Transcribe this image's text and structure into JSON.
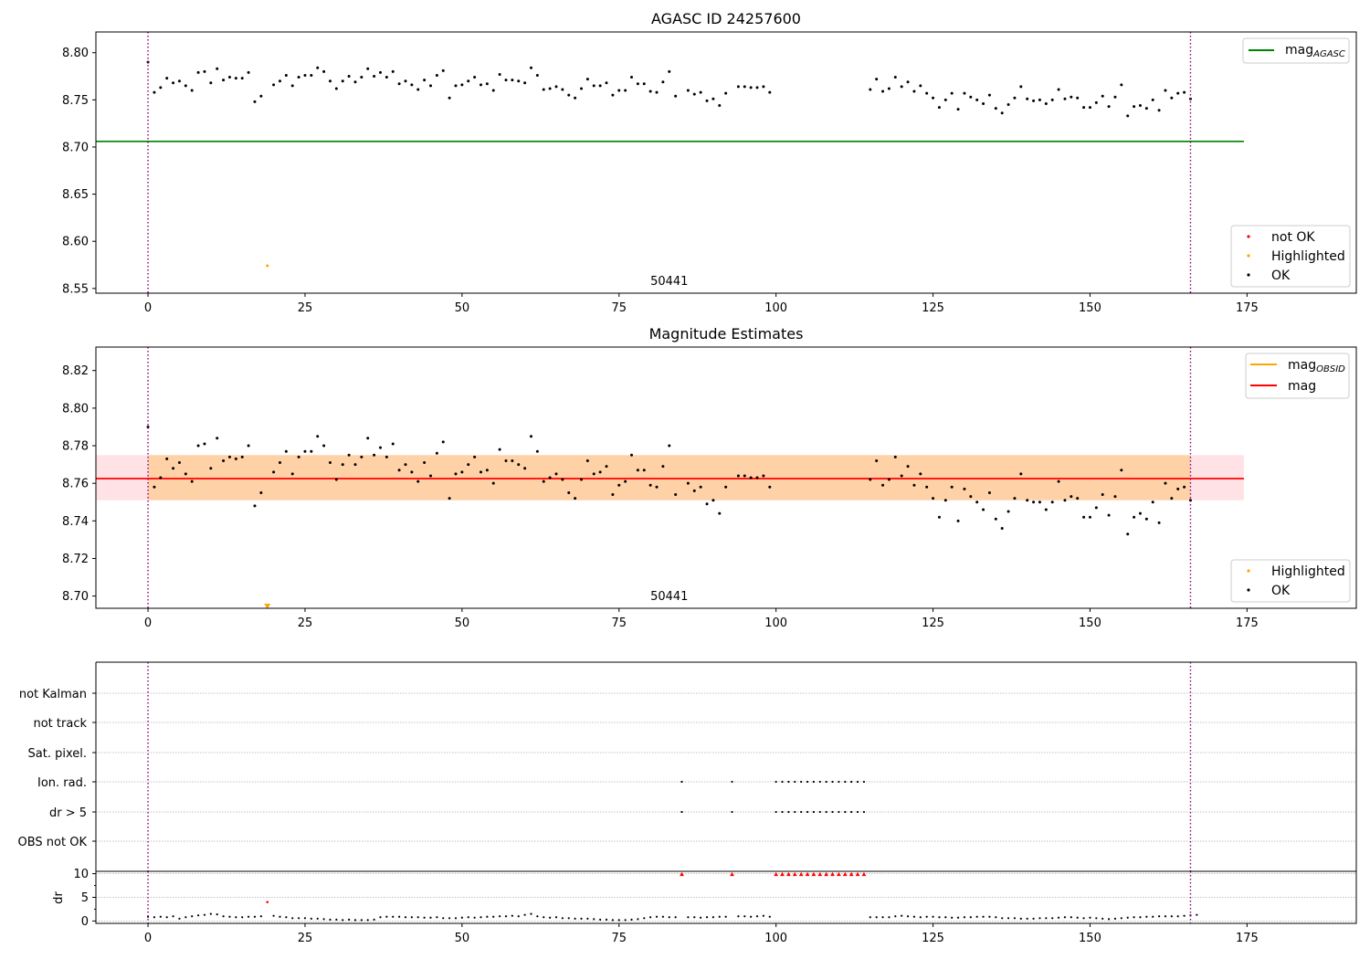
{
  "chart_data": [
    {
      "type": "scatter",
      "panel": "top",
      "title": "AGASC ID 24257600",
      "xlim": [
        -8.3,
        192.4
      ],
      "ylim": [
        8.545,
        8.822
      ],
      "xticks": [
        0,
        25,
        50,
        75,
        100,
        125,
        150,
        175
      ],
      "yticks": [
        8.55,
        8.6,
        8.65,
        8.7,
        8.75,
        8.8
      ],
      "ytick_labels": [
        "8.55",
        "8.60",
        "8.65",
        "8.70",
        "8.75",
        "8.80"
      ],
      "xtick_labels": [
        "0",
        "25",
        "50",
        "75",
        "100",
        "125",
        "150",
        "175"
      ],
      "obsid_label": "50441",
      "obsid_label_x": 83,
      "obsid_boundaries": [
        0,
        166
      ],
      "ref_line": {
        "name": "mag_AGASC",
        "value": 8.706,
        "xmax": 174.5,
        "color": "#008000"
      },
      "legend_lines": [
        {
          "label": "mag",
          "sub": "AGASC",
          "color": "#008000"
        }
      ],
      "legend_points": [
        {
          "label": "not OK",
          "color": "#ff0000"
        },
        {
          "label": "Highlighted",
          "color": "#ffa500"
        },
        {
          "label": "OK",
          "color": "#000000"
        }
      ],
      "highlighted": [
        {
          "x": 19,
          "y": 8.574
        }
      ],
      "ok_series": {
        "x_start": 0,
        "values": [
          8.79,
          8.758,
          8.763,
          8.773,
          8.768,
          8.77,
          8.765,
          8.76,
          8.779,
          8.78,
          8.768,
          8.783,
          8.771,
          8.774,
          8.773,
          8.773,
          8.779,
          8.748,
          8.754,
          null,
          8.766,
          8.77,
          8.776,
          8.765,
          8.774,
          8.776,
          8.776,
          8.784,
          8.78,
          8.77,
          8.762,
          8.77,
          8.775,
          8.769,
          8.774,
          8.783,
          8.775,
          8.779,
          8.774,
          8.78,
          8.767,
          8.77,
          8.766,
          8.761,
          8.771,
          8.765,
          8.776,
          8.781,
          8.752,
          8.765,
          8.766,
          8.77,
          8.774,
          8.766,
          8.767,
          8.76,
          8.777,
          8.771,
          8.771,
          8.77,
          8.768,
          8.784,
          8.776,
          8.761,
          8.762,
          8.764,
          8.761,
          8.755,
          8.752,
          8.762,
          8.772,
          8.765,
          8.765,
          8.768,
          8.755,
          8.76,
          8.76,
          8.774,
          8.767,
          8.767,
          8.759,
          8.758,
          8.769,
          8.78,
          8.754,
          null,
          8.76,
          8.756,
          8.758,
          8.749,
          8.751,
          8.744,
          8.757,
          null,
          8.764,
          8.764,
          8.763,
          8.763,
          8.764,
          8.758,
          null,
          null,
          null,
          null,
          null,
          null,
          null,
          null,
          null,
          null,
          null,
          null,
          null,
          null,
          null,
          8.761,
          8.772,
          8.759,
          8.762,
          8.774,
          8.764,
          8.769,
          8.759,
          8.765,
          8.757,
          8.752,
          8.742,
          8.75,
          8.757,
          8.74,
          8.757,
          8.753,
          8.75,
          8.746,
          8.755,
          8.741,
          8.736,
          8.745,
          8.752,
          8.764,
          8.751,
          8.749,
          8.75,
          8.746,
          8.75,
          8.761,
          8.751,
          8.753,
          8.752,
          8.742,
          8.742,
          8.747,
          8.754,
          8.743,
          8.753,
          8.766,
          8.733,
          8.743,
          8.744,
          8.741,
          8.75,
          8.739,
          8.76,
          8.752,
          8.757,
          8.758,
          8.751
        ]
      }
    },
    {
      "type": "scatter",
      "panel": "middle",
      "title": "Magnitude Estimates",
      "xlim": [
        -8.3,
        192.4
      ],
      "ylim": [
        8.6935,
        8.8325
      ],
      "xticks": [
        0,
        25,
        50,
        75,
        100,
        125,
        150,
        175
      ],
      "yticks": [
        8.7,
        8.72,
        8.74,
        8.76,
        8.78,
        8.8,
        8.82
      ],
      "ytick_labels": [
        "8.70",
        "8.72",
        "8.74",
        "8.76",
        "8.78",
        "8.80",
        "8.82"
      ],
      "xtick_labels": [
        "0",
        "25",
        "50",
        "75",
        "100",
        "125",
        "150",
        "175"
      ],
      "obsid_label": "50441",
      "obsid_label_x": 83,
      "obsid_boundaries": [
        0,
        166
      ],
      "mag_line": {
        "value": 8.7625,
        "xmax": 174.5,
        "color": "#ff0000"
      },
      "mag_band": {
        "low": 8.751,
        "high": 8.775,
        "color": "#ffb6c1"
      },
      "mag_obsid_band": {
        "low": 8.751,
        "high": 8.775,
        "xmax": 166,
        "color": "#ffa500"
      },
      "legend_lines": [
        {
          "label": "mag",
          "sub": "OBSID",
          "color": "#ffa500"
        },
        {
          "label": "mag",
          "sub": "",
          "color": "#ff0000"
        }
      ],
      "legend_points": [
        {
          "label": "Highlighted",
          "color": "#ffa500"
        },
        {
          "label": "OK",
          "color": "#000000"
        }
      ],
      "highlighted": [
        {
          "x": 19,
          "y": 8.6945,
          "marker": "triangle-down"
        }
      ],
      "ok_series": {
        "x_start": 0,
        "values": [
          8.79,
          8.758,
          8.763,
          8.773,
          8.768,
          8.771,
          8.765,
          8.761,
          8.78,
          8.781,
          8.768,
          8.784,
          8.772,
          8.774,
          8.773,
          8.774,
          8.78,
          8.748,
          8.755,
          null,
          8.766,
          8.771,
          8.777,
          8.765,
          8.774,
          8.777,
          8.777,
          8.785,
          8.78,
          8.771,
          8.762,
          8.77,
          8.775,
          8.77,
          8.774,
          8.784,
          8.775,
          8.779,
          8.774,
          8.781,
          8.767,
          8.77,
          8.766,
          8.761,
          8.771,
          8.764,
          8.776,
          8.782,
          8.752,
          8.765,
          8.766,
          8.77,
          8.774,
          8.766,
          8.767,
          8.76,
          8.778,
          8.772,
          8.772,
          8.77,
          8.768,
          8.785,
          8.777,
          8.761,
          8.763,
          8.765,
          8.762,
          8.755,
          8.752,
          8.762,
          8.772,
          8.765,
          8.766,
          8.769,
          8.754,
          8.759,
          8.761,
          8.775,
          8.767,
          8.767,
          8.759,
          8.758,
          8.769,
          8.78,
          8.754,
          null,
          8.76,
          8.756,
          8.758,
          8.749,
          8.751,
          8.744,
          8.758,
          null,
          8.764,
          8.764,
          8.763,
          8.763,
          8.764,
          8.758,
          null,
          null,
          null,
          null,
          null,
          null,
          null,
          null,
          null,
          null,
          null,
          null,
          null,
          null,
          null,
          8.762,
          8.772,
          8.759,
          8.762,
          8.774,
          8.764,
          8.769,
          8.759,
          8.765,
          8.758,
          8.752,
          8.742,
          8.751,
          8.758,
          8.74,
          8.757,
          8.753,
          8.75,
          8.746,
          8.755,
          8.741,
          8.736,
          8.745,
          8.752,
          8.765,
          8.751,
          8.75,
          8.75,
          8.746,
          8.75,
          8.761,
          8.751,
          8.753,
          8.752,
          8.742,
          8.742,
          8.747,
          8.754,
          8.743,
          8.753,
          8.767,
          8.733,
          8.742,
          8.744,
          8.741,
          8.75,
          8.739,
          8.76,
          8.752,
          8.757,
          8.758,
          8.751
        ]
      }
    },
    {
      "type": "scatter",
      "panel": "flags",
      "xlim": [
        -8.3,
        192.4
      ],
      "category_labels": [
        "not Kalman",
        "not track",
        "Sat. pixel.",
        "Ion. rad.",
        "dr > 5",
        "OBS not OK"
      ],
      "obsid_boundaries": [
        0,
        166
      ],
      "flag_points": {
        "Ion. rad.": [
          85,
          93,
          100,
          101,
          102,
          103,
          104,
          105,
          106,
          107,
          108,
          109,
          110,
          111,
          112,
          113,
          114
        ],
        "dr > 5": [
          85,
          93,
          100,
          101,
          102,
          103,
          104,
          105,
          106,
          107,
          108,
          109,
          110,
          111,
          112,
          113,
          114
        ]
      }
    },
    {
      "type": "scatter",
      "panel": "dr",
      "ylabel": "dr",
      "xlim": [
        -8.3,
        192.4
      ],
      "ylim": [
        -0.5,
        10.5
      ],
      "yticks": [
        0,
        5,
        10
      ],
      "ytick_labels": [
        "0",
        "5",
        "10"
      ],
      "xticks": [
        0,
        25,
        50,
        75,
        100,
        125,
        150,
        175
      ],
      "xtick_labels": [
        "0",
        "25",
        "50",
        "75",
        "100",
        "125",
        "150",
        "175"
      ],
      "obsid_boundaries": [
        0,
        166
      ],
      "highlighted_red": [
        {
          "x": 19,
          "y": 4.0
        }
      ],
      "clipped_triangles": {
        "y": 9.9,
        "x": [
          85,
          93,
          100,
          101,
          102,
          103,
          104,
          105,
          106,
          107,
          108,
          109,
          110,
          111,
          112,
          113,
          114
        ]
      },
      "ok_series": {
        "x_start": 0,
        "values": [
          0.9,
          0.8,
          0.9,
          0.8,
          1.0,
          0.5,
          0.8,
          1.0,
          1.2,
          1.3,
          1.5,
          1.4,
          1.0,
          0.9,
          0.8,
          0.8,
          0.9,
          0.9,
          1.0,
          null,
          1.1,
          0.9,
          0.8,
          0.6,
          0.6,
          0.6,
          0.5,
          0.5,
          0.4,
          0.3,
          0.3,
          0.2,
          0.3,
          0.2,
          0.2,
          0.2,
          0.3,
          0.8,
          0.9,
          0.9,
          0.9,
          0.8,
          0.8,
          0.8,
          0.7,
          0.7,
          0.8,
          0.6,
          0.6,
          0.6,
          0.7,
          0.8,
          0.7,
          0.8,
          0.9,
          0.9,
          1.0,
          1.0,
          1.1,
          1.0,
          1.3,
          1.5,
          1.0,
          0.8,
          0.7,
          0.8,
          0.6,
          0.6,
          0.5,
          0.5,
          0.5,
          0.4,
          0.3,
          0.3,
          0.2,
          0.2,
          0.2,
          0.3,
          0.4,
          0.6,
          0.8,
          0.9,
          0.9,
          0.8,
          0.8,
          null,
          0.8,
          0.8,
          0.7,
          0.8,
          0.8,
          0.9,
          0.9,
          null,
          1.0,
          1.0,
          0.9,
          1.0,
          1.1,
          0.9,
          null,
          null,
          null,
          null,
          null,
          null,
          null,
          null,
          null,
          null,
          null,
          null,
          null,
          null,
          null,
          0.8,
          0.8,
          0.8,
          0.8,
          1.0,
          1.1,
          1.0,
          0.9,
          0.8,
          0.9,
          0.9,
          0.8,
          0.8,
          0.7,
          0.7,
          0.8,
          0.8,
          0.9,
          0.9,
          0.9,
          0.8,
          0.6,
          0.6,
          0.6,
          0.5,
          0.5,
          0.5,
          0.6,
          0.6,
          0.6,
          0.7,
          0.8,
          0.8,
          0.7,
          0.6,
          0.7,
          0.6,
          0.5,
          0.4,
          0.5,
          0.6,
          0.7,
          0.8,
          0.8,
          0.9,
          0.9,
          1.0,
          1.0,
          1.0,
          1.0,
          1.1,
          1.2,
          1.3
        ]
      }
    }
  ]
}
